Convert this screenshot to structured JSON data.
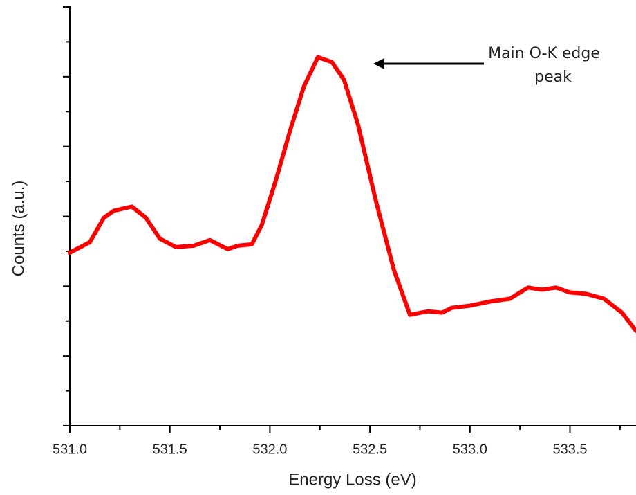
{
  "chart_data": {
    "type": "line",
    "xlabel": "Energy Loss (eV)",
    "ylabel": "Counts (a.u.)",
    "annotation": [
      "Main O-K edge",
      "peak"
    ],
    "x": [
      531.0,
      531.1,
      531.17,
      531.22,
      531.31,
      531.38,
      531.45,
      531.53,
      531.62,
      531.7,
      531.79,
      531.84,
      531.91,
      531.96,
      532.03,
      532.1,
      532.17,
      532.24,
      532.31,
      532.37,
      532.44,
      532.53,
      532.62,
      532.7,
      532.79,
      532.86,
      532.91,
      533.0,
      533.1,
      533.2,
      533.29,
      533.36,
      533.43,
      533.5,
      533.58,
      533.67,
      533.76,
      533.83
    ],
    "values": [
      2.48,
      2.63,
      2.98,
      3.08,
      3.14,
      2.98,
      2.68,
      2.56,
      2.58,
      2.66,
      2.53,
      2.58,
      2.6,
      2.88,
      3.52,
      4.22,
      4.86,
      5.28,
      5.21,
      4.96,
      4.32,
      3.22,
      2.23,
      1.59,
      1.64,
      1.62,
      1.69,
      1.72,
      1.78,
      1.82,
      1.98,
      1.95,
      1.98,
      1.91,
      1.89,
      1.82,
      1.62,
      1.36
    ],
    "color": "#ff0000",
    "xlim": [
      531.0,
      533.83
    ],
    "xticks": [
      {
        "value": 531.0,
        "label": "531.0"
      },
      531.5,
      {
        "value": 532.0,
        "label": "532.0"
      },
      532.5,
      {
        "value": 533.0,
        "label": "533.0"
      },
      533.5
    ],
    "xminorticks": [
      531.25,
      531.75,
      532.25,
      532.75,
      533.25,
      533.75
    ],
    "ylim": [
      0,
      6
    ],
    "yticks": [
      0,
      1,
      2,
      3,
      4,
      5,
      6
    ],
    "yminorticks": [
      0.5,
      1.5,
      2.5,
      3.5,
      4.5,
      5.5
    ]
  }
}
